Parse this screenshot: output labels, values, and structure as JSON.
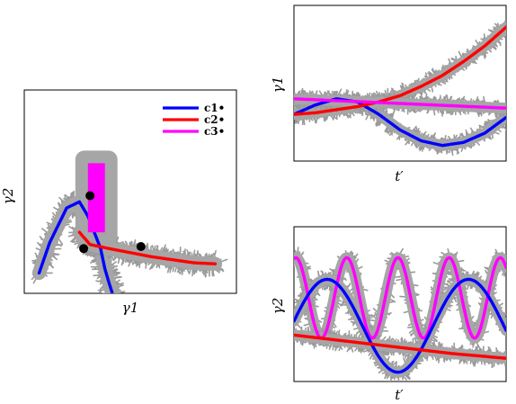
{
  "chart_data": [
    {
      "type": "line",
      "xlabel": "γ1",
      "ylabel": "γ2",
      "legend": {
        "placement": "top-right",
        "entries": [
          {
            "label": "c1•",
            "color": "#0000ff"
          },
          {
            "label": "c2•",
            "color": "#ff0000"
          },
          {
            "label": "c3•",
            "color": "#ff00ff"
          }
        ]
      },
      "series": [
        {
          "color": "#0000ff",
          "x": [
            0.07,
            0.12,
            0.2,
            0.26,
            0.3,
            0.33,
            0.36,
            0.38,
            0.4,
            0.43
          ],
          "y": [
            0.1,
            0.25,
            0.42,
            0.45,
            0.38,
            0.3,
            0.22,
            0.12,
            0.05,
            -0.05
          ]
        },
        {
          "color": "#ff0000",
          "x": [
            0.26,
            0.31,
            0.4,
            0.5,
            0.6,
            0.7,
            0.8,
            0.9
          ],
          "y": [
            0.3,
            0.24,
            0.22,
            0.2,
            0.18,
            0.165,
            0.15,
            0.145
          ]
        },
        {
          "color": "#ff00ff",
          "x": [
            0.3,
            0.38
          ],
          "y": [
            0.3,
            0.64
          ],
          "shape": "filled-rectangle"
        }
      ],
      "points": [
        {
          "x": 0.31,
          "y": 0.48
        },
        {
          "x": 0.28,
          "y": 0.22
        },
        {
          "x": 0.55,
          "y": 0.23
        }
      ],
      "xlim": [
        0,
        1
      ],
      "ylim": [
        0,
        1
      ],
      "grid": false,
      "noise_band": "gray"
    },
    {
      "type": "line",
      "xlabel": "t′",
      "ylabel": "γ1",
      "series": [
        {
          "color": "#0000ff",
          "x": [
            0,
            0.1,
            0.2,
            0.3,
            0.4,
            0.5,
            0.6,
            0.7,
            0.8,
            0.9,
            1.0
          ],
          "y": [
            0.3,
            0.36,
            0.4,
            0.38,
            0.3,
            0.2,
            0.13,
            0.1,
            0.12,
            0.18,
            0.28
          ]
        },
        {
          "color": "#ff0000",
          "x": [
            0,
            0.1,
            0.2,
            0.3,
            0.4,
            0.5,
            0.6,
            0.7,
            0.8,
            0.9,
            1.0
          ],
          "y": [
            0.3,
            0.31,
            0.33,
            0.35,
            0.38,
            0.42,
            0.48,
            0.55,
            0.64,
            0.74,
            0.86
          ]
        },
        {
          "color": "#ff00ff",
          "x": [
            0,
            1.0
          ],
          "y": [
            0.4,
            0.34
          ]
        }
      ],
      "xlim": [
        0,
        1
      ],
      "ylim": [
        0,
        1
      ],
      "grid": false,
      "noise_band": "gray"
    },
    {
      "type": "line",
      "xlabel": "t′",
      "ylabel": "γ2",
      "series": [
        {
          "color": "#ff00ff",
          "kind": "sine",
          "offset": 0.54,
          "amplitude": 0.26,
          "cycles": 4.15,
          "phase": 1.35
        },
        {
          "color": "#0000ff",
          "kind": "sine",
          "offset": 0.36,
          "amplitude": 0.3,
          "cycles": 1.5,
          "phase": 0.1
        },
        {
          "color": "#ff0000",
          "x": [
            0,
            0.25,
            0.5,
            0.75,
            1.0
          ],
          "y": [
            0.3,
            0.26,
            0.22,
            0.18,
            0.15
          ]
        }
      ],
      "xlim": [
        0,
        1
      ],
      "ylim": [
        0,
        1
      ],
      "grid": false,
      "noise_band": "gray"
    }
  ]
}
